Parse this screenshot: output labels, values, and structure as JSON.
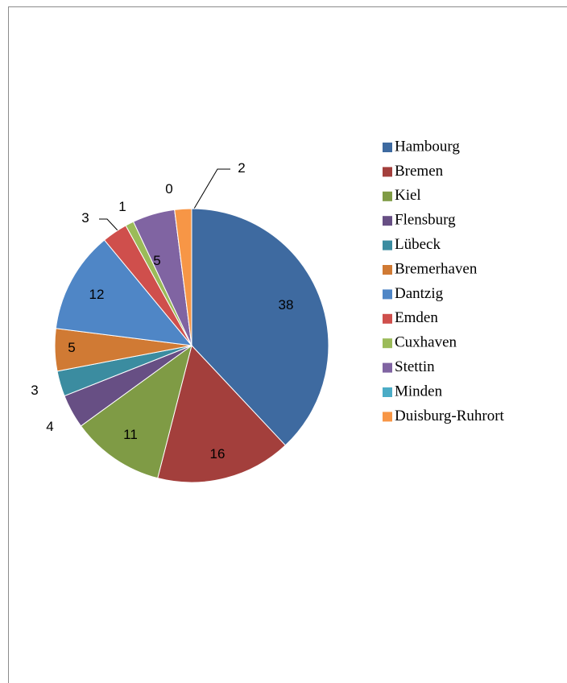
{
  "chart_data": {
    "type": "pie",
    "categories": [
      "Hambourg",
      "Bremen",
      "Kiel",
      "Flensburg",
      "Lübeck",
      "Bremerhaven",
      "Dantzig",
      "Emden",
      "Cuxhaven",
      "Stettin",
      "Minden",
      "Duisburg-Ruhrort"
    ],
    "values": [
      38,
      16,
      11,
      4,
      3,
      5,
      12,
      3,
      1,
      5,
      0,
      2
    ],
    "colors": [
      "#3e6aa0",
      "#a33f3c",
      "#7f9b45",
      "#674f84",
      "#3b8ca0",
      "#d07a34",
      "#4f86c6",
      "#cf4f4c",
      "#9bbb59",
      "#8064a2",
      "#4bacc6",
      "#f79646"
    ],
    "legend": "right"
  }
}
